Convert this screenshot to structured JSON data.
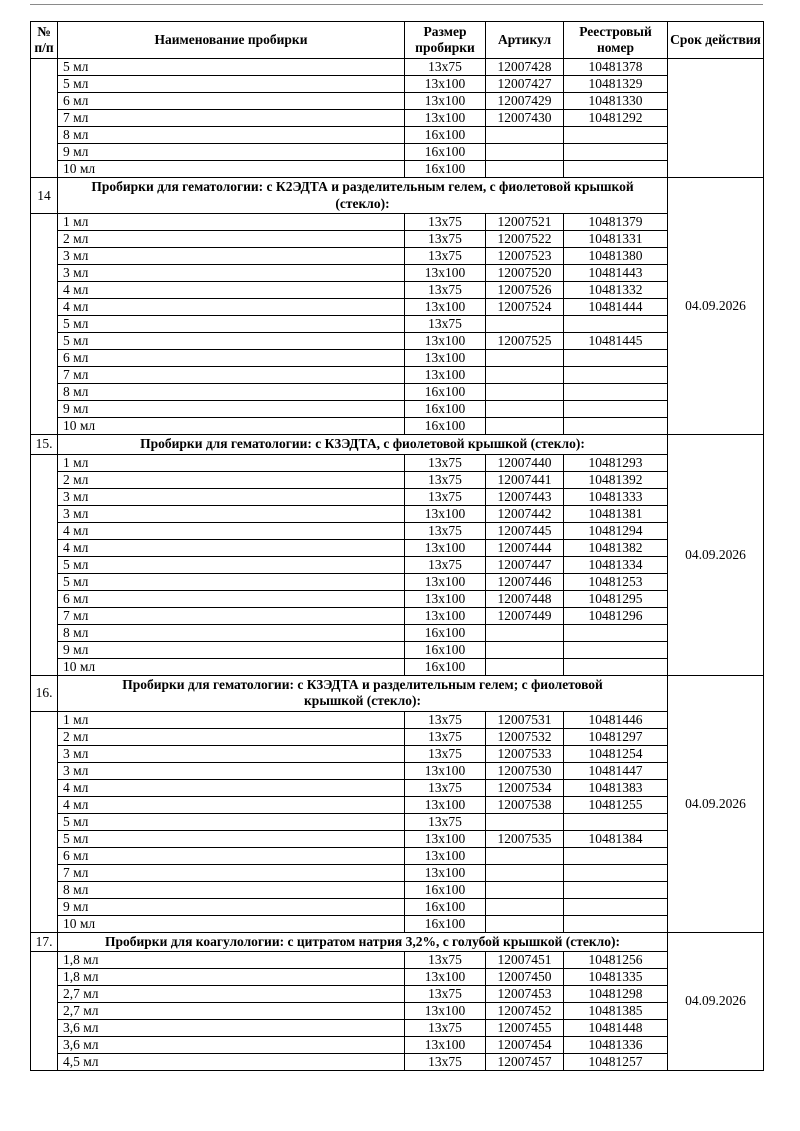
{
  "table": {
    "columns": [
      "№ п/п",
      "Наименование пробирки",
      "Размер пробирки",
      "Артикул",
      "Реестровый номер",
      "Срок действия"
    ],
    "blocks": [
      {
        "num": "",
        "title_lines": null,
        "term": "",
        "rows": [
          [
            "5 мл",
            "13x75",
            "12007428",
            "10481378"
          ],
          [
            "5 мл",
            "13x100",
            "12007427",
            "10481329"
          ],
          [
            "6 мл",
            "13x100",
            "12007429",
            "10481330"
          ],
          [
            "7 мл",
            "13x100",
            "12007430",
            "10481292"
          ],
          [
            "8 мл",
            "16x100",
            "",
            ""
          ],
          [
            "9 мл",
            "16x100",
            "",
            ""
          ],
          [
            "10 мл",
            "16x100",
            "",
            ""
          ]
        ]
      },
      {
        "num": "14",
        "title_lines": [
          "Пробирки для гематологии: с К2ЭДТА и разделительным гелем, с фиолетовой крышкой",
          "(стекло):"
        ],
        "term": "04.09.2026",
        "rows": [
          [
            "1 мл",
            "13x75",
            "12007521",
            "10481379"
          ],
          [
            "2 мл",
            "13x75",
            "12007522",
            "10481331"
          ],
          [
            "3 мл",
            "13x75",
            "12007523",
            "10481380"
          ],
          [
            "3 мл",
            "13x100",
            "12007520",
            "10481443"
          ],
          [
            "4 мл",
            "13x75",
            "12007526",
            "10481332"
          ],
          [
            "4 мл",
            "13x100",
            "12007524",
            "10481444"
          ],
          [
            "5 мл",
            "13x75",
            "",
            ""
          ],
          [
            "5 мл",
            "13x100",
            "12007525",
            "10481445"
          ],
          [
            "6 мл",
            "13x100",
            "",
            ""
          ],
          [
            "7 мл",
            "13x100",
            "",
            ""
          ],
          [
            "8 мл",
            "16x100",
            "",
            ""
          ],
          [
            "9 мл",
            "16x100",
            "",
            ""
          ],
          [
            "10 мл",
            "16x100",
            "",
            ""
          ]
        ]
      },
      {
        "num": "15.",
        "title_lines": [
          "Пробирки для гематологии: с К3ЭДТА, с фиолетовой крышкой (стекло):"
        ],
        "term": "04.09.2026",
        "rows": [
          [
            "1 мл",
            "13x75",
            "12007440",
            "10481293"
          ],
          [
            "2 мл",
            "13x75",
            "12007441",
            "10481392"
          ],
          [
            "3 мл",
            "13x75",
            "12007443",
            "10481333"
          ],
          [
            "3 мл",
            "13x100",
            "12007442",
            "10481381"
          ],
          [
            "4 мл",
            "13x75",
            "12007445",
            "10481294"
          ],
          [
            "4 мл",
            "13x100",
            "12007444",
            "10481382"
          ],
          [
            "5 мл",
            "13x75",
            "12007447",
            "10481334"
          ],
          [
            "5 мл",
            "13x100",
            "12007446",
            "10481253"
          ],
          [
            "6 мл",
            "13x100",
            "12007448",
            "10481295"
          ],
          [
            "7 мл",
            "13x100",
            "12007449",
            "10481296"
          ],
          [
            "8 мл",
            "16x100",
            "",
            ""
          ],
          [
            "9 мл",
            "16x100",
            "",
            ""
          ],
          [
            "10 мл",
            "16x100",
            "",
            ""
          ]
        ]
      },
      {
        "num": "16.",
        "title_lines": [
          "Пробирки для гематологии: с К3ЭДТА и разделительным гелем; с фиолетовой",
          "крышкой (стекло):"
        ],
        "term": "04.09.2026",
        "rows": [
          [
            "1 мл",
            "13x75",
            "12007531",
            "10481446"
          ],
          [
            "2 мл",
            "13x75",
            "12007532",
            "10481297"
          ],
          [
            "3 мл",
            "13x75",
            "12007533",
            "10481254"
          ],
          [
            "3 мл",
            "13x100",
            "12007530",
            "10481447"
          ],
          [
            "4 мл",
            "13x75",
            "12007534",
            "10481383"
          ],
          [
            "4 мл",
            "13x100",
            "12007538",
            "10481255"
          ],
          [
            "5 мл",
            "13x75",
            "",
            ""
          ],
          [
            "5 мл",
            "13x100",
            "12007535",
            "10481384"
          ],
          [
            "6 мл",
            "13x100",
            "",
            ""
          ],
          [
            "7 мл",
            "13x100",
            "",
            ""
          ],
          [
            "8 мл",
            "16x100",
            "",
            ""
          ],
          [
            "9 мл",
            "16x100",
            "",
            ""
          ],
          [
            "10 мл",
            "16x100",
            "",
            ""
          ]
        ]
      },
      {
        "num": "17.",
        "title_lines": [
          "Пробирки для коагулологии: с цитратом натрия 3,2%, с голубой крышкой (стекло):"
        ],
        "term": "04.09.2026",
        "rows": [
          [
            "1,8 мл",
            "13x75",
            "12007451",
            "10481256"
          ],
          [
            "1,8 мл",
            "13x100",
            "12007450",
            "10481335"
          ],
          [
            "2,7 мл",
            "13x75",
            "12007453",
            "10481298"
          ],
          [
            "2,7 мл",
            "13x100",
            "12007452",
            "10481385"
          ],
          [
            "3,6 мл",
            "13x75",
            "12007455",
            "10481448"
          ],
          [
            "3,6 мл",
            "13x100",
            "12007454",
            "10481336"
          ],
          [
            "4,5 мл",
            "13x75",
            "12007457",
            "10481257"
          ]
        ]
      }
    ]
  }
}
